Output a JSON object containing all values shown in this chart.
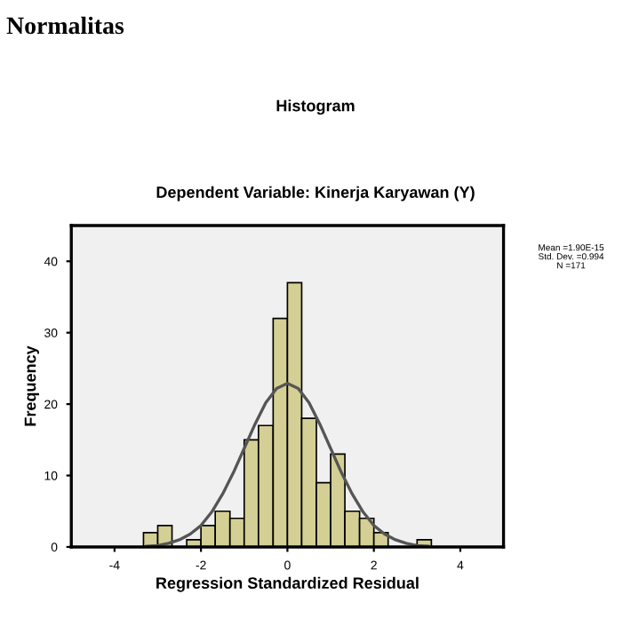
{
  "chart_data": {
    "type": "histogram",
    "title": "Histogram",
    "subtitle": "Dependent Variable: Kinerja Karyawan (Y)",
    "xlabel": "Regression Standardized Residual",
    "ylabel": "Frequency",
    "annotations": [
      "Normalitas",
      "Mean =1.90E-15\nStd. Dev. =0.994\nN =171"
    ],
    "bins": [
      -3.33,
      -3.0,
      -2.67,
      -2.33,
      -2.0,
      -1.67,
      -1.33,
      -1.0,
      -0.67,
      -0.33,
      0.0,
      0.33,
      0.67,
      1.0,
      1.33,
      1.67,
      2.0,
      2.33,
      2.67,
      3.0,
      3.33
    ],
    "series": [
      {
        "color": "#d4cf94",
        "values": [
          2,
          3,
          0,
          1,
          3,
          5,
          4,
          15,
          17,
          32,
          37,
          18,
          9,
          13,
          5,
          4,
          2,
          0,
          0,
          1
        ]
      },
      {
        "type": "line",
        "color": "#555555",
        "x": [
          -3.25,
          -3.0,
          -2.75,
          -2.5,
          -2.25,
          -2.0,
          -1.75,
          -1.5,
          -1.25,
          -1.0,
          -0.75,
          -0.5,
          -0.25,
          0.0,
          0.25,
          0.5,
          0.75,
          1.0,
          1.25,
          1.5,
          1.75,
          2.0,
          2.25,
          2.5,
          2.75,
          3.0,
          3.25
        ],
        "values": [
          0.1,
          0.2,
          0.5,
          1.0,
          1.8,
          3.0,
          4.9,
          7.4,
          10.4,
          13.8,
          17.2,
          20.2,
          22.2,
          22.9,
          22.2,
          20.2,
          17.2,
          13.8,
          10.4,
          7.4,
          4.9,
          3.0,
          1.8,
          1.0,
          0.5,
          0.2,
          0.1
        ]
      }
    ],
    "xlim": [
      -5,
      5
    ],
    "ylim": [
      0,
      45
    ],
    "xticks": [
      -4,
      -2,
      0,
      2,
      4
    ],
    "yticks": [
      0,
      10,
      20,
      30,
      40
    ],
    "grid": false
  }
}
